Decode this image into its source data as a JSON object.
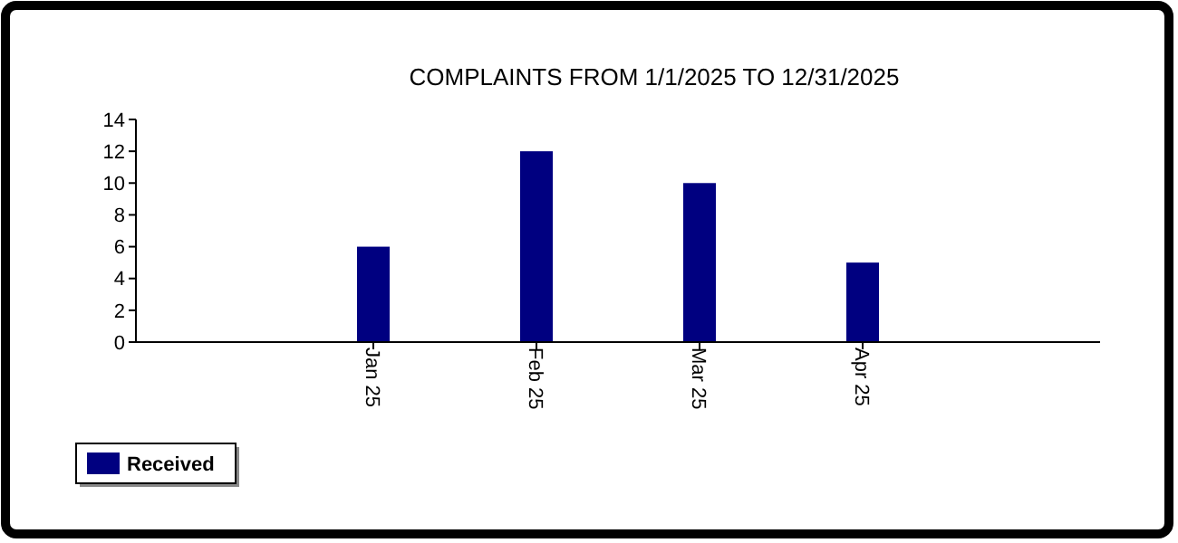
{
  "chart_data": {
    "type": "bar",
    "title": "COMPLAINTS FROM 1/1/2025 TO 12/31/2025",
    "categories": [
      "Jan 25",
      "Feb 25",
      "Mar 25",
      "Apr 25"
    ],
    "series": [
      {
        "name": "Received",
        "color": "#000080",
        "values": [
          6,
          12,
          10,
          5
        ]
      }
    ],
    "ylim": [
      0,
      14
    ],
    "yticks": [
      0,
      2,
      4,
      6,
      8,
      10,
      12,
      14
    ],
    "grid": false,
    "legend": "bottom left"
  }
}
